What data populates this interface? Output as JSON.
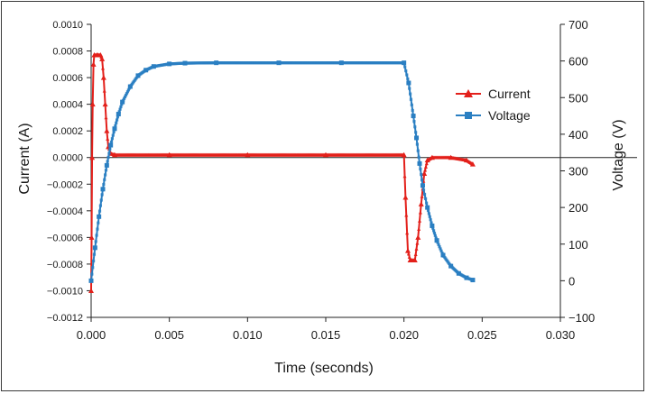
{
  "chart_data": {
    "type": "line",
    "title": "",
    "xlabel": "Time (seconds)",
    "ylabel_left": "Current (A)",
    "ylabel_right": "Voltage (V)",
    "xlim": [
      0,
      0.03
    ],
    "ylim_left": [
      -0.0012,
      0.001
    ],
    "ylim_right": [
      -100,
      700
    ],
    "x_ticks": [
      "0.000",
      "0.005",
      "0.010",
      "0.015",
      "0.020",
      "0.025",
      "0.030"
    ],
    "y_left_ticks": [
      "0.0010",
      "0.0008",
      "0.0006",
      "0.0004",
      "0.0002",
      "0.0000",
      "−0.0002",
      "−0.0004",
      "−0.0006",
      "−0.0008",
      "−0.0010",
      "−0.0012"
    ],
    "y_right_ticks": [
      "700",
      "600",
      "500",
      "400",
      "300",
      "200",
      "100",
      "0",
      "−100"
    ],
    "legend_position": "upper-right",
    "series": [
      {
        "name": "Current",
        "axis": "left",
        "color": "#e3201b",
        "marker": "triangle",
        "points": [
          [
            0.0,
            -0.001
          ],
          [
            3e-05,
            -0.0006
          ],
          [
            6e-05,
            0.0
          ],
          [
            0.0001,
            0.0004
          ],
          [
            0.00015,
            0.0007
          ],
          [
            0.0002,
            0.00077
          ],
          [
            0.0004,
            0.00077
          ],
          [
            0.0006,
            0.00077
          ],
          [
            0.0007,
            0.00074
          ],
          [
            0.0008,
            0.0006
          ],
          [
            0.0009,
            0.0004
          ],
          [
            0.001,
            0.0002
          ],
          [
            0.0011,
            8e-05
          ],
          [
            0.00125,
            3e-05
          ],
          [
            0.0015,
            2e-05
          ],
          [
            0.005,
            2e-05
          ],
          [
            0.01,
            2e-05
          ],
          [
            0.015,
            2e-05
          ],
          [
            0.02,
            2e-05
          ],
          [
            0.0201,
            -0.0003
          ],
          [
            0.02025,
            -0.0007
          ],
          [
            0.0204,
            -0.00077
          ],
          [
            0.0207,
            -0.00077
          ],
          [
            0.0209,
            -0.0006
          ],
          [
            0.0211,
            -0.00035
          ],
          [
            0.0213,
            -0.00012
          ],
          [
            0.0215,
            -2e-05
          ],
          [
            0.0218,
            0.0
          ],
          [
            0.023,
            0.0
          ],
          [
            0.024,
            -2e-05
          ],
          [
            0.0244,
            -5e-05
          ]
        ]
      },
      {
        "name": "Voltage",
        "axis": "right",
        "color": "#2a7fc2",
        "marker": "square",
        "points": [
          [
            0.0,
            0
          ],
          [
            0.00025,
            90
          ],
          [
            0.0005,
            175
          ],
          [
            0.00075,
            250
          ],
          [
            0.001,
            315
          ],
          [
            0.00125,
            370
          ],
          [
            0.0015,
            415
          ],
          [
            0.00175,
            455
          ],
          [
            0.002,
            488
          ],
          [
            0.0025,
            530
          ],
          [
            0.003,
            560
          ],
          [
            0.0035,
            575
          ],
          [
            0.004,
            585
          ],
          [
            0.005,
            592
          ],
          [
            0.006,
            594
          ],
          [
            0.008,
            595
          ],
          [
            0.012,
            595
          ],
          [
            0.016,
            595
          ],
          [
            0.02,
            595
          ],
          [
            0.0203,
            540
          ],
          [
            0.0206,
            450
          ],
          [
            0.0208,
            390
          ],
          [
            0.021,
            320
          ],
          [
            0.0212,
            260
          ],
          [
            0.0215,
            200
          ],
          [
            0.0218,
            150
          ],
          [
            0.0221,
            110
          ],
          [
            0.0225,
            70
          ],
          [
            0.023,
            40
          ],
          [
            0.0235,
            20
          ],
          [
            0.024,
            8
          ],
          [
            0.0244,
            2
          ]
        ]
      }
    ]
  }
}
